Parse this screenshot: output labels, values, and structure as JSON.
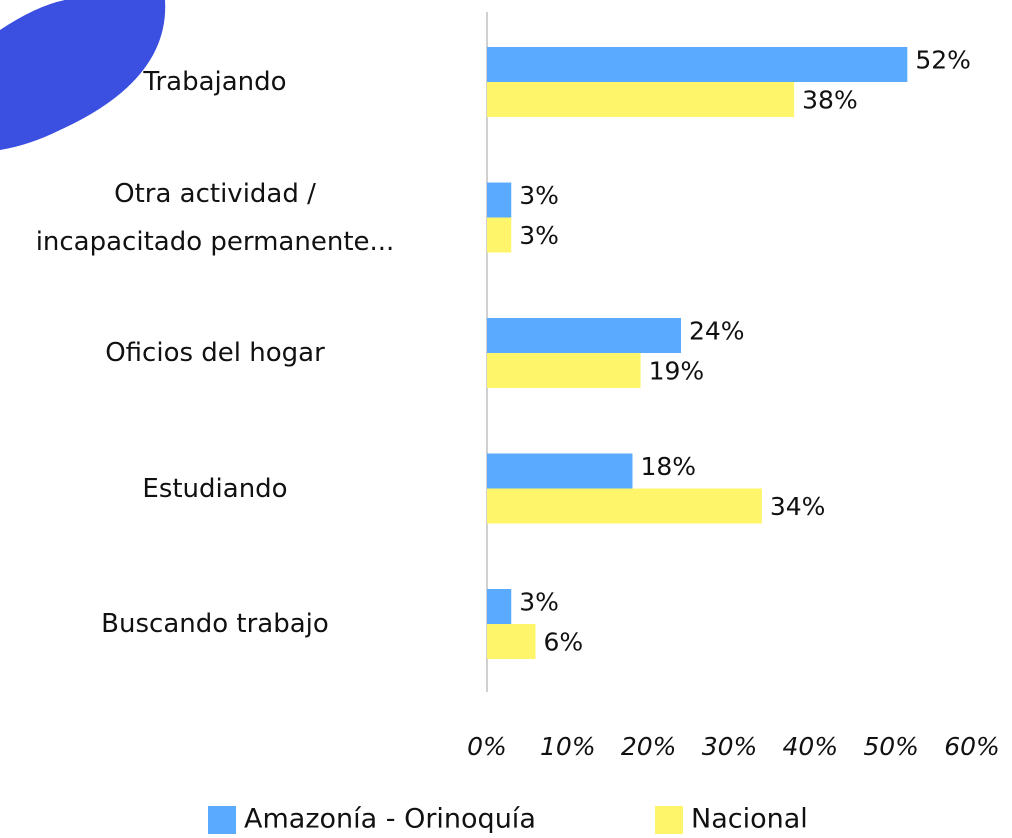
{
  "chart_data": {
    "type": "bar",
    "orientation": "horizontal",
    "categories": [
      "Trabajando",
      "Otra actividad /\nincapacitado permanente...",
      "Oficios del hogar",
      "Estudiando",
      "Buscando trabajo"
    ],
    "series": [
      {
        "name": "Amazonía - Orinoquía",
        "color": "#5aabff",
        "values": [
          52,
          3,
          24,
          18,
          3
        ],
        "value_labels": [
          "52%",
          "3%",
          "24%",
          "18%",
          "3%"
        ]
      },
      {
        "name": "Nacional",
        "color": "#fff56a",
        "values": [
          38,
          3,
          19,
          34,
          6
        ],
        "value_labels": [
          "38%",
          "3%",
          "19%",
          "34%",
          "6%"
        ]
      }
    ],
    "xlim": [
      0,
      60
    ],
    "xticks": [
      {
        "value": 0,
        "label": "0%"
      },
      {
        "value": 10,
        "label": "10%"
      },
      {
        "value": 20,
        "label": "20%"
      },
      {
        "value": 30,
        "label": "30%"
      },
      {
        "value": 40,
        "label": "40%"
      },
      {
        "value": 50,
        "label": "50%"
      },
      {
        "value": 60,
        "label": "60%"
      }
    ],
    "grid": false,
    "legend": "bottom"
  }
}
